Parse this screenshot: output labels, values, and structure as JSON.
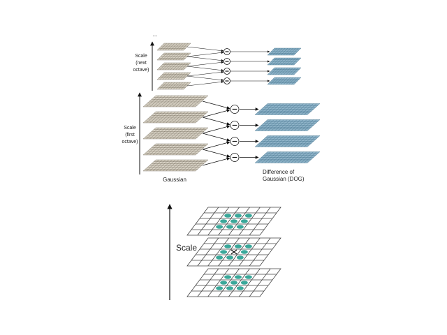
{
  "top": {
    "ellipsis": "...",
    "next_octave_label": [
      "Scale",
      "(next",
      "octave)"
    ],
    "first_octave_label": [
      "Scale",
      "(first",
      "octave)"
    ],
    "gaussian_label": "Gaussian",
    "dog_label": [
      "Difference of",
      "Gaussian (DOG)"
    ]
  },
  "bottom": {
    "scale_label": "Scale"
  }
}
